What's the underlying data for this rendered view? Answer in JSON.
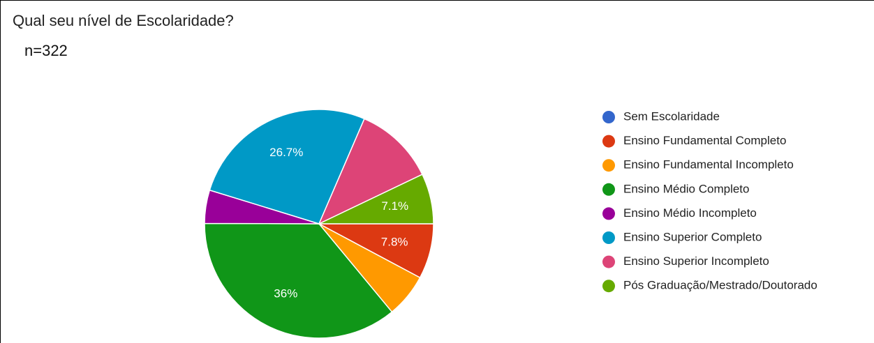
{
  "chart_data": {
    "type": "pie",
    "title": "Qual seu nível de Escolaridade?",
    "subtitle": "n=322",
    "categories": [
      "Sem Escolaridade",
      "Ensino Fundamental Completo",
      "Ensino Fundamental Incompleto",
      "Ensino Médio Completo",
      "Ensino Médio Incompleto",
      "Ensino Superior Completo",
      "Ensino Superior Incompleto",
      "Pós Graduação/Mestrado/Doutorado"
    ],
    "values": [
      0,
      7.8,
      6.2,
      36,
      4.7,
      26.7,
      11.4,
      7.1
    ],
    "value_labels": [
      null,
      "7.8%",
      null,
      "36%",
      null,
      "26.7%",
      null,
      "7.1%"
    ],
    "colors": [
      "#3366cc",
      "#dc3912",
      "#ff9900",
      "#109618",
      "#990099",
      "#0099c6",
      "#dd4477",
      "#66aa00"
    ],
    "legend": "right"
  }
}
